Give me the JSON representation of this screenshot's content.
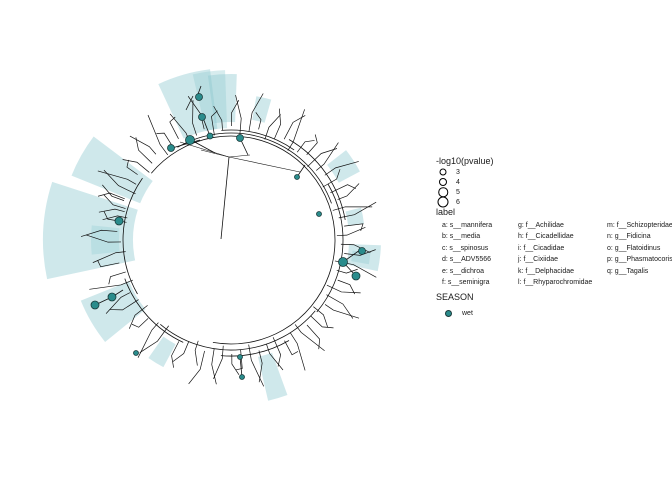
{
  "chart_data": {
    "type": "circular phylogenetic tree",
    "highlight_color": "#8cc9cf",
    "node_color": "#2a8c8c",
    "legend": {
      "size_title": "-log10(pvalue)",
      "size_values": [
        "3",
        "4",
        "5",
        "6"
      ],
      "label_title": "label",
      "labels": [
        "a: s__mannifera",
        "b: s__media",
        "c: s__spinosus",
        "d: s__ADV5566",
        "e: s__dichroa",
        "f: s__seminigra",
        "g: f__Achilidae",
        "h: f__Cicadellidae",
        "i: f__Cicadidae",
        "j: f__Cixiidae",
        "k: f__Delphacidae",
        "l: f__Rhyparochromidae",
        "m: f__Schizopteridae",
        "n: g__Fidicina",
        "o: g__Flatoidinus",
        "p: g__Phasmatocoris",
        "q: g__Tagalis"
      ],
      "season_title": "SEASON",
      "season_items": [
        {
          "name": "wet",
          "color": "#2a8c8c"
        }
      ]
    }
  }
}
